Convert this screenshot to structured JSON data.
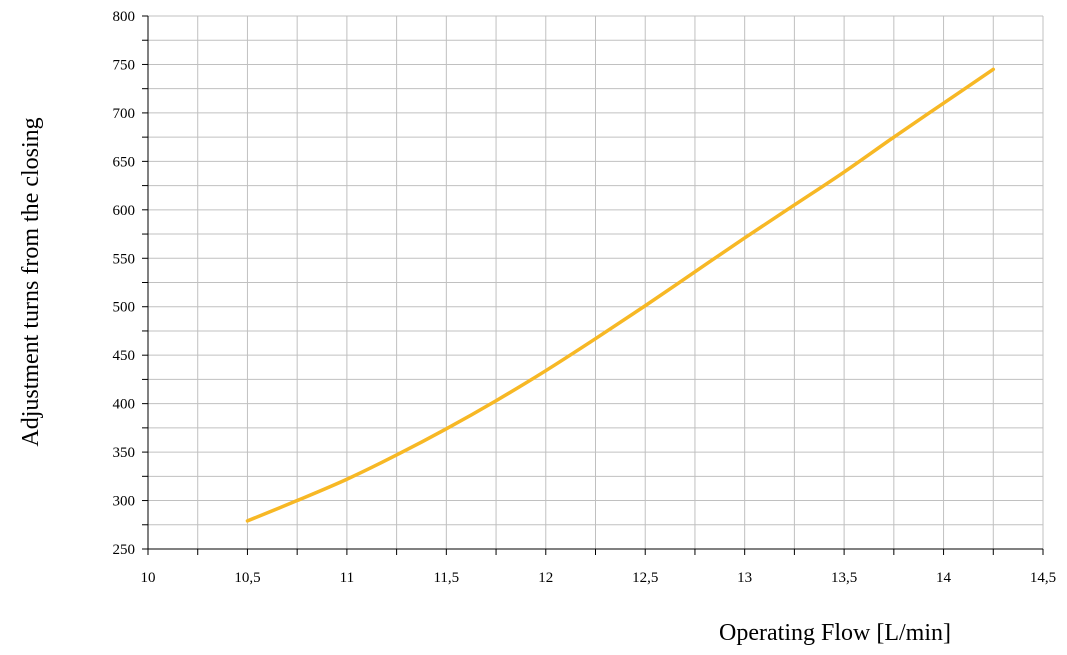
{
  "chart_data": {
    "type": "line",
    "title": "",
    "xlabel": "Operating Flow [L/min]",
    "ylabel": "Adjustment turns from the closing",
    "xlim": [
      10,
      14.5
    ],
    "ylim": [
      250,
      800
    ],
    "x_ticks": [
      "10",
      "10,5",
      "11",
      "11,5",
      "12",
      "12,5",
      "13",
      "13,5",
      "14",
      "14,5"
    ],
    "y_ticks": [
      "250",
      "300",
      "350",
      "400",
      "450",
      "500",
      "550",
      "600",
      "650",
      "700",
      "750",
      "800"
    ],
    "grid": true,
    "legend": "none",
    "series": [
      {
        "color": "#F7B825",
        "x": [
          10.5,
          10.75,
          11.0,
          11.25,
          11.5,
          11.75,
          12.0,
          12.25,
          12.5,
          12.75,
          13.0,
          13.25,
          13.5,
          13.75,
          14.0,
          14.25
        ],
        "y": [
          279,
          300,
          322,
          347,
          374,
          403,
          434,
          467,
          501,
          536,
          571,
          605,
          639,
          675,
          710,
          745
        ]
      }
    ]
  }
}
